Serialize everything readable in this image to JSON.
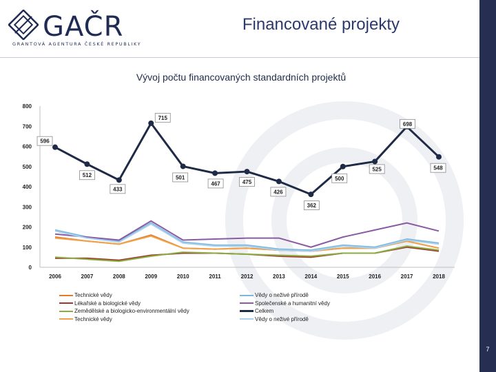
{
  "header": {
    "logo_text": "GAČR",
    "logo_sub": "GRANTOVÁ AGENTURA ČESKÉ REPUBLIKY",
    "page_title": "Financované projekty"
  },
  "footer": {
    "page_number": "7"
  },
  "colors": {
    "brand_navy": "#262f52",
    "title": "#2c3a6b"
  },
  "chart_data": {
    "type": "line",
    "title": "Vývoj počtu financovaných standardních projektů",
    "categories": [
      "2006",
      "2007",
      "2008",
      "2009",
      "2010",
      "2011",
      "2012",
      "2013",
      "2014",
      "2015",
      "2016",
      "2017",
      "2018"
    ],
    "ylim": [
      0,
      800
    ],
    "yticks": [
      0,
      100,
      200,
      300,
      400,
      500,
      600,
      700,
      800
    ],
    "grid": false,
    "legend_position": "bottom",
    "series": [
      {
        "name": "Technické vědy",
        "color": "#e07b2c",
        "width": 2,
        "values": [
          150,
          130,
          115,
          160,
          95,
          90,
          95,
          85,
          80,
          95,
          95,
          130,
          95
        ]
      },
      {
        "name": "Lékařské a biologické vědy",
        "color": "#9e3a2a",
        "width": 2,
        "values": [
          45,
          45,
          35,
          60,
          70,
          70,
          65,
          55,
          50,
          70,
          70,
          100,
          80
        ]
      },
      {
        "name": "Zemědělské a biologicko-environmentální vědy",
        "color": "#8bab43",
        "width": 2,
        "values": [
          50,
          40,
          30,
          55,
          75,
          70,
          65,
          60,
          55,
          70,
          70,
          105,
          85
        ]
      },
      {
        "name": "Technické vědy",
        "color": "#f0a24b",
        "width": 2,
        "values": [
          145,
          130,
          115,
          155,
          95,
          90,
          95,
          85,
          80,
          95,
          95,
          130,
          95
        ]
      },
      {
        "name": "Vědy o neživé přírodě",
        "color": "#7bb8de",
        "width": 2,
        "values": [
          185,
          150,
          130,
          220,
          125,
          110,
          110,
          90,
          85,
          110,
          100,
          140,
          120
        ]
      },
      {
        "name": "Společenské a humanitní vědy",
        "color": "#8a5aa3",
        "width": 2,
        "values": [
          165,
          150,
          135,
          230,
          135,
          140,
          145,
          145,
          100,
          150,
          185,
          220,
          180
        ]
      },
      {
        "name": "Celkem",
        "color": "#1f2b46",
        "width": 3,
        "markers": true,
        "values": [
          596,
          512,
          433,
          715,
          501,
          467,
          475,
          426,
          362,
          500,
          525,
          698,
          548
        ]
      },
      {
        "name": "Vědy o neživé přírodě",
        "color": "#a9d1ee",
        "width": 2,
        "values": [
          180,
          145,
          125,
          215,
          120,
          105,
          105,
          85,
          80,
          105,
          95,
          135,
          115
        ]
      }
    ],
    "data_labels": {
      "series": "Celkem",
      "values": [
        "596",
        "512",
        "433",
        "715",
        "501",
        "467",
        "475",
        "426",
        "362",
        "500",
        "525",
        "698",
        "548"
      ]
    }
  }
}
